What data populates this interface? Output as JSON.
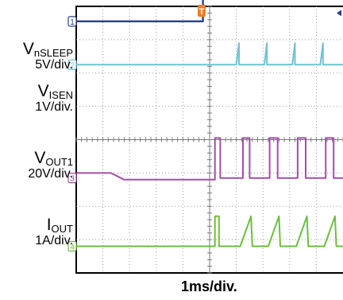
{
  "chart_data": {
    "type": "line",
    "x_scale_label": "1ms/div.",
    "divisions_x": 10,
    "divisions_y": 8,
    "time_unit": "div",
    "trigger_marker": "T",
    "channels": [
      {
        "id": "1",
        "name_main": "V",
        "name_sub": "nSLEEP",
        "scale": "5V/div.",
        "color": "#2a3f8f",
        "ref_level_div": 3.55,
        "points": [
          [
            0,
            3.55
          ],
          [
            4.75,
            3.55
          ],
          [
            4.75,
            4.7
          ],
          [
            10,
            4.7
          ]
        ]
      },
      {
        "id": "2",
        "name_main": "V",
        "name_sub": "ISEN",
        "scale": "1V/div.",
        "color": "#6ec3d4",
        "ref_level_div": 2.25,
        "points": [
          [
            0,
            2.25
          ],
          [
            6.0,
            2.25
          ],
          [
            6.1,
            2.9
          ],
          [
            6.1,
            2.25
          ],
          [
            7.05,
            2.25
          ],
          [
            7.15,
            2.9
          ],
          [
            7.15,
            2.25
          ],
          [
            8.1,
            2.25
          ],
          [
            8.2,
            2.9
          ],
          [
            8.2,
            2.25
          ],
          [
            9.15,
            2.25
          ],
          [
            9.25,
            2.9
          ],
          [
            9.25,
            2.25
          ],
          [
            10,
            2.25
          ]
        ]
      },
      {
        "id": "3",
        "name_main": "V",
        "name_sub": "OUT1",
        "scale": "20V/div.",
        "color": "#a34fa6",
        "ref_level_div": -1.15,
        "points": [
          [
            0,
            -1.0
          ],
          [
            1.3,
            -1.0
          ],
          [
            1.8,
            -1.2
          ],
          [
            5.2,
            -1.2
          ],
          [
            5.2,
            0.05
          ],
          [
            5.4,
            0.05
          ],
          [
            5.4,
            -1.15
          ],
          [
            6.25,
            -1.15
          ],
          [
            6.25,
            0.05
          ],
          [
            6.5,
            0.05
          ],
          [
            6.5,
            -1.15
          ],
          [
            7.25,
            -1.15
          ],
          [
            7.25,
            0.05
          ],
          [
            7.55,
            0.05
          ],
          [
            7.55,
            -1.15
          ],
          [
            8.3,
            -1.15
          ],
          [
            8.3,
            0.05
          ],
          [
            8.6,
            0.05
          ],
          [
            8.6,
            -1.15
          ],
          [
            9.35,
            -1.15
          ],
          [
            9.35,
            0.05
          ],
          [
            9.65,
            0.05
          ],
          [
            9.65,
            -1.15
          ],
          [
            10,
            -1.15
          ]
        ]
      },
      {
        "id": "4",
        "name_main": "I",
        "name_sub": "OUT",
        "scale": "1A/div.",
        "color": "#6cbf3d",
        "ref_level_div": -3.2,
        "points": [
          [
            0,
            -3.2
          ],
          [
            5.2,
            -3.2
          ],
          [
            5.2,
            -2.3
          ],
          [
            5.35,
            -2.3
          ],
          [
            5.35,
            -3.2
          ],
          [
            6.15,
            -3.2
          ],
          [
            6.55,
            -2.3
          ],
          [
            6.6,
            -3.2
          ],
          [
            7.2,
            -3.2
          ],
          [
            7.6,
            -2.3
          ],
          [
            7.65,
            -3.2
          ],
          [
            8.25,
            -3.2
          ],
          [
            8.65,
            -2.3
          ],
          [
            8.7,
            -3.2
          ],
          [
            9.3,
            -3.2
          ],
          [
            9.7,
            -2.3
          ],
          [
            9.75,
            -3.2
          ],
          [
            10,
            -3.2
          ]
        ]
      }
    ]
  }
}
